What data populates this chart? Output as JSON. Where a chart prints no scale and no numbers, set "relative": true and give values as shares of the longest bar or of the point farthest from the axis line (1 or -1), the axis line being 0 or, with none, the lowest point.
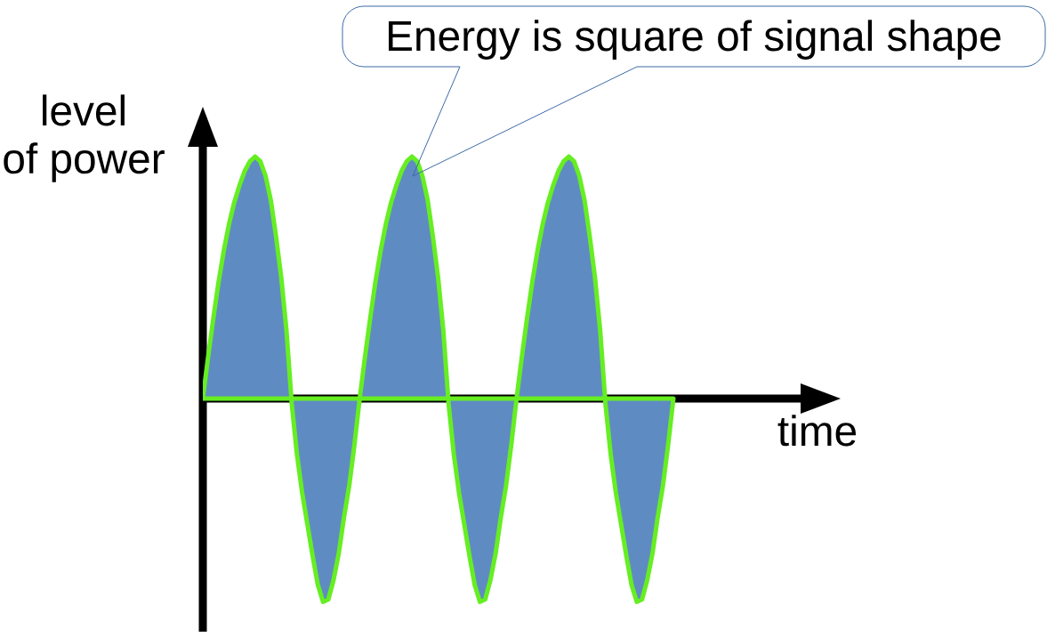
{
  "chart_data": {
    "type": "area",
    "relative": true,
    "xlabel": "time",
    "ylabel": "level of power",
    "annotations": [
      "Energy is square of signal shape"
    ],
    "color": "#5f8bc3",
    "categories": [
      null,
      null,
      null,
      null,
      null,
      null,
      null,
      null,
      null,
      null,
      null,
      null,
      null,
      null,
      null,
      null,
      null,
      null,
      null,
      null,
      null,
      null,
      null,
      null,
      null,
      null,
      null,
      null,
      null,
      null,
      null,
      null,
      null,
      null,
      null,
      null,
      null,
      null,
      null,
      null,
      null,
      null,
      null,
      null,
      null,
      null,
      null,
      null,
      null,
      null,
      null,
      null,
      null,
      null,
      null,
      null,
      null,
      null,
      null,
      null,
      null,
      null,
      null,
      null,
      null,
      null,
      null,
      null,
      null,
      null,
      null,
      null,
      null,
      null,
      null,
      null,
      null,
      null,
      null,
      null,
      null,
      null,
      null,
      null,
      null,
      null,
      null,
      null,
      null,
      null,
      null
    ],
    "values": [
      0,
      0.17,
      0.33,
      0.48,
      0.61,
      0.72,
      0.81,
      0.88,
      0.94,
      0.98,
      1,
      0.98,
      0.92,
      0.82,
      0.67,
      0.5,
      0.28,
      -0.02,
      -0.23,
      -0.39,
      -0.52,
      -0.65,
      -0.77,
      -0.84,
      -0.83,
      -0.75,
      -0.64,
      -0.49,
      -0.36,
      -0.19,
      0,
      0.17,
      0.33,
      0.48,
      0.61,
      0.72,
      0.81,
      0.88,
      0.94,
      0.98,
      1,
      0.98,
      0.92,
      0.82,
      0.67,
      0.5,
      0.28,
      -0.02,
      -0.23,
      -0.39,
      -0.52,
      -0.65,
      -0.77,
      -0.84,
      -0.83,
      -0.75,
      -0.64,
      -0.49,
      -0.36,
      -0.19,
      0,
      0.17,
      0.33,
      0.48,
      0.61,
      0.72,
      0.81,
      0.88,
      0.94,
      0.98,
      1,
      0.98,
      0.92,
      0.82,
      0.67,
      0.5,
      0.28,
      -0.02,
      -0.23,
      -0.39,
      -0.52,
      -0.65,
      -0.77,
      -0.84,
      -0.83,
      -0.75,
      -0.64,
      -0.49,
      -0.36,
      -0.19,
      0
    ]
  }
}
